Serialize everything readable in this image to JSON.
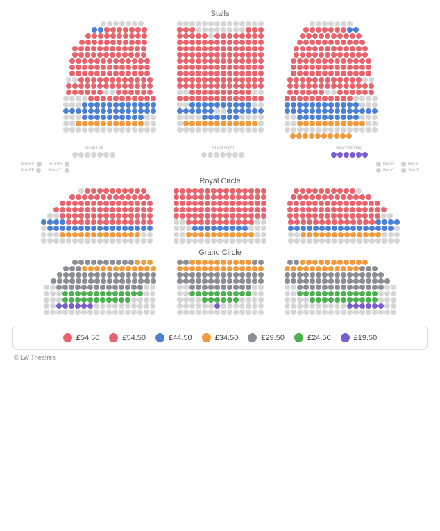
{
  "colors": {
    "red": "#e8636c",
    "blue": "#4a7fd4",
    "orange": "#f2993b",
    "grey": "#c8c8c8",
    "darkgrey": "#8a8d93",
    "green": "#4cb050",
    "purple": "#7a5dcf",
    "unavail": "#d6d6d6"
  },
  "sections": {
    "stalls": {
      "title": "Stalls"
    },
    "royal": {
      "title": "Royal Circle"
    },
    "grand": {
      "title": "Grand Circle"
    }
  },
  "standing": {
    "left": {
      "label": "Stand Left",
      "count": 7,
      "color": "unavail"
    },
    "right": {
      "label": "Stand Right",
      "count": 7,
      "color": "unavail"
    },
    "rear": {
      "label": "Rear Standing",
      "count": 6,
      "color": "purple"
    }
  },
  "boxes": {
    "left": [
      {
        "a": "Box EE",
        "b": "Box BB"
      },
      {
        "a": "Box FF",
        "b": "Box CC"
      }
    ],
    "right": [
      {
        "a": "Box B",
        "b": "Box E"
      },
      {
        "a": "Box C",
        "b": "Box F"
      }
    ]
  },
  "stalls_blocks": {
    "left": [
      {
        "n": 7,
        "c": "unavail",
        "off": 4
      },
      {
        "n": 9,
        "c": "red",
        "off": 3,
        "mix": [
          [
            "blue",
            0,
            2
          ]
        ]
      },
      {
        "n": 10,
        "c": "red",
        "off": 2
      },
      {
        "n": 11,
        "c": "red",
        "off": 1
      },
      {
        "n": 12,
        "c": "red"
      },
      {
        "n": 12,
        "c": "red"
      },
      {
        "n": 13,
        "c": "red"
      },
      {
        "n": 13,
        "c": "red"
      },
      {
        "n": 13,
        "c": "red"
      },
      {
        "n": 14,
        "c": "red",
        "mix": [
          [
            "unavail",
            0,
            2
          ]
        ]
      },
      {
        "n": 14,
        "c": "red"
      },
      {
        "n": 14,
        "c": "red",
        "mix": [
          [
            "unavail",
            6,
            8
          ]
        ]
      },
      {
        "n": 15,
        "c": "red",
        "mix": [
          [
            "unavail",
            0,
            4
          ]
        ]
      },
      {
        "n": 15,
        "c": "blue",
        "mix": [
          [
            "unavail",
            0,
            3
          ]
        ]
      },
      {
        "n": 15,
        "c": "blue"
      },
      {
        "n": 15,
        "c": "unavail",
        "off": 0,
        "mix": [
          [
            "blue",
            3,
            13
          ]
        ]
      },
      {
        "n": 15,
        "c": "orange",
        "mix": [
          [
            "unavail",
            0,
            2
          ],
          [
            "unavail",
            13,
            15
          ]
        ]
      },
      {
        "n": 15,
        "c": "unavail"
      }
    ],
    "center": [
      {
        "n": 14,
        "c": "unavail"
      },
      {
        "n": 14,
        "c": "unavail",
        "mix": [
          [
            "red",
            0,
            3
          ],
          [
            "red",
            11,
            14
          ]
        ]
      },
      {
        "n": 14,
        "c": "red",
        "mix": [
          [
            "unavail",
            5,
            6
          ]
        ]
      },
      {
        "n": 14,
        "c": "red"
      },
      {
        "n": 14,
        "c": "red"
      },
      {
        "n": 14,
        "c": "red"
      },
      {
        "n": 14,
        "c": "red"
      },
      {
        "n": 14,
        "c": "red"
      },
      {
        "n": 14,
        "c": "red"
      },
      {
        "n": 14,
        "c": "red"
      },
      {
        "n": 14,
        "c": "red"
      },
      {
        "n": 14,
        "c": "red",
        "mix": [
          [
            "unavail",
            0,
            2
          ],
          [
            "unavail",
            12,
            14
          ]
        ]
      },
      {
        "n": 14,
        "c": "red"
      },
      {
        "n": 14,
        "c": "blue",
        "mix": [
          [
            "unavail",
            0,
            2
          ],
          [
            "unavail",
            12,
            14
          ]
        ]
      },
      {
        "n": 14,
        "c": "blue",
        "mix": [
          [
            "unavail",
            6,
            8
          ]
        ]
      },
      {
        "n": 14,
        "c": "unavail",
        "mix": [
          [
            "blue",
            4,
            10
          ]
        ]
      },
      {
        "n": 14,
        "c": "orange",
        "mix": [
          [
            "unavail",
            0,
            1
          ],
          [
            "unavail",
            13,
            14
          ]
        ]
      },
      {
        "n": 14,
        "c": "unavail"
      }
    ],
    "right": [
      {
        "n": 7,
        "c": "unavail",
        "off": 0
      },
      {
        "n": 9,
        "c": "red",
        "off": 0,
        "mix": [
          [
            "blue",
            7,
            9
          ]
        ]
      },
      {
        "n": 10,
        "c": "red"
      },
      {
        "n": 11,
        "c": "red"
      },
      {
        "n": 12,
        "c": "red"
      },
      {
        "n": 12,
        "c": "red"
      },
      {
        "n": 13,
        "c": "red"
      },
      {
        "n": 13,
        "c": "red"
      },
      {
        "n": 13,
        "c": "red"
      },
      {
        "n": 14,
        "c": "red",
        "mix": [
          [
            "unavail",
            12,
            14
          ]
        ]
      },
      {
        "n": 14,
        "c": "red"
      },
      {
        "n": 14,
        "c": "red",
        "mix": [
          [
            "unavail",
            6,
            8
          ]
        ]
      },
      {
        "n": 15,
        "c": "red",
        "mix": [
          [
            "unavail",
            11,
            15
          ]
        ]
      },
      {
        "n": 15,
        "c": "blue",
        "mix": [
          [
            "unavail",
            12,
            15
          ]
        ]
      },
      {
        "n": 15,
        "c": "blue"
      },
      {
        "n": 15,
        "c": "unavail",
        "mix": [
          [
            "blue",
            2,
            12
          ]
        ]
      },
      {
        "n": 15,
        "c": "orange",
        "mix": [
          [
            "unavail",
            0,
            2
          ],
          [
            "unavail",
            13,
            15
          ]
        ]
      },
      {
        "n": 15,
        "c": "unavail"
      },
      {
        "n": 10,
        "c": "orange",
        "off": 3
      }
    ]
  },
  "royal_blocks": {
    "left": [
      {
        "n": 11,
        "c": "red",
        "off": 5,
        "mix": [
          [
            "unavail",
            0,
            1
          ]
        ]
      },
      {
        "n": 13,
        "c": "red",
        "off": 4
      },
      {
        "n": 15,
        "c": "red",
        "off": 3
      },
      {
        "n": 16,
        "c": "red",
        "off": 2
      },
      {
        "n": 17,
        "c": "red",
        "off": 1,
        "mix": [
          [
            "unavail",
            0,
            2
          ]
        ]
      },
      {
        "n": 18,
        "c": "red",
        "mix": [
          [
            "blue",
            0,
            4
          ]
        ]
      },
      {
        "n": 18,
        "c": "blue",
        "mix": [
          [
            "unavail",
            0,
            1
          ]
        ]
      },
      {
        "n": 18,
        "c": "orange",
        "mix": [
          [
            "unavail",
            0,
            3
          ],
          [
            "unavail",
            16,
            18
          ]
        ]
      },
      {
        "n": 18,
        "c": "unavail"
      }
    ],
    "center": [
      {
        "n": 15,
        "c": "red"
      },
      {
        "n": 15,
        "c": "red"
      },
      {
        "n": 15,
        "c": "red"
      },
      {
        "n": 15,
        "c": "red"
      },
      {
        "n": 15,
        "c": "red"
      },
      {
        "n": 15,
        "c": "red",
        "mix": [
          [
            "unavail",
            0,
            2
          ],
          [
            "unavail",
            13,
            15
          ]
        ]
      },
      {
        "n": 15,
        "c": "unavail",
        "mix": [
          [
            "blue",
            3,
            12
          ]
        ]
      },
      {
        "n": 15,
        "c": "orange",
        "mix": [
          [
            "unavail",
            0,
            2
          ],
          [
            "unavail",
            13,
            15
          ]
        ]
      },
      {
        "n": 15,
        "c": "unavail"
      }
    ],
    "right": [
      {
        "n": 11,
        "c": "red",
        "off": 0,
        "pad": 5,
        "mix": [
          [
            "unavail",
            10,
            11
          ]
        ]
      },
      {
        "n": 13,
        "c": "red",
        "off": 0,
        "pad": 4
      },
      {
        "n": 15,
        "c": "red",
        "off": 0,
        "pad": 3
      },
      {
        "n": 16,
        "c": "red",
        "off": 0,
        "pad": 2
      },
      {
        "n": 17,
        "c": "red",
        "off": 0,
        "pad": 1,
        "mix": [
          [
            "unavail",
            15,
            17
          ]
        ]
      },
      {
        "n": 18,
        "c": "red",
        "mix": [
          [
            "blue",
            14,
            18
          ]
        ]
      },
      {
        "n": 18,
        "c": "blue",
        "mix": [
          [
            "unavail",
            17,
            18
          ]
        ]
      },
      {
        "n": 18,
        "c": "orange",
        "mix": [
          [
            "unavail",
            0,
            2
          ],
          [
            "unavail",
            15,
            18
          ]
        ]
      },
      {
        "n": 18,
        "c": "unavail"
      }
    ]
  },
  "grand_blocks": {
    "left": [
      {
        "n": 13,
        "c": "darkgrey",
        "off": 4,
        "mix": [
          [
            "orange",
            10,
            13
          ]
        ]
      },
      {
        "n": 15,
        "c": "orange",
        "off": 3,
        "mix": [
          [
            "darkgrey",
            0,
            3
          ]
        ]
      },
      {
        "n": 16,
        "c": "darkgrey",
        "off": 2
      },
      {
        "n": 17,
        "c": "darkgrey",
        "off": 1
      },
      {
        "n": 18,
        "c": "unavail",
        "mix": [
          [
            "darkgrey",
            2,
            16
          ]
        ]
      },
      {
        "n": 18,
        "c": "green",
        "mix": [
          [
            "unavail",
            0,
            3
          ],
          [
            "unavail",
            16,
            18
          ]
        ]
      },
      {
        "n": 18,
        "c": "unavail",
        "mix": [
          [
            "green",
            3,
            14
          ]
        ]
      },
      {
        "n": 18,
        "c": "unavail",
        "mix": [
          [
            "purple",
            2,
            8
          ]
        ]
      },
      {
        "n": 18,
        "c": "unavail"
      }
    ],
    "center": [
      {
        "n": 14,
        "c": "orange",
        "mix": [
          [
            "darkgrey",
            0,
            2
          ],
          [
            "darkgrey",
            12,
            14
          ]
        ]
      },
      {
        "n": 14,
        "c": "orange"
      },
      {
        "n": 14,
        "c": "darkgrey"
      },
      {
        "n": 14,
        "c": "darkgrey"
      },
      {
        "n": 14,
        "c": "darkgrey",
        "mix": [
          [
            "unavail",
            0,
            2
          ],
          [
            "unavail",
            12,
            14
          ]
        ]
      },
      {
        "n": 14,
        "c": "green",
        "mix": [
          [
            "unavail",
            0,
            2
          ],
          [
            "unavail",
            12,
            14
          ]
        ]
      },
      {
        "n": 14,
        "c": "unavail",
        "mix": [
          [
            "green",
            4,
            10
          ]
        ]
      },
      {
        "n": 14,
        "c": "unavail",
        "mix": [
          [
            "purple",
            6,
            7
          ]
        ]
      },
      {
        "n": 14,
        "c": "unavail"
      }
    ],
    "right": [
      {
        "n": 13,
        "c": "orange",
        "off": 0,
        "pad": 4,
        "mix": [
          [
            "darkgrey",
            0,
            2
          ]
        ]
      },
      {
        "n": 15,
        "c": "orange",
        "off": 0,
        "pad": 3,
        "mix": [
          [
            "darkgrey",
            12,
            15
          ]
        ]
      },
      {
        "n": 16,
        "c": "darkgrey",
        "off": 0,
        "pad": 2
      },
      {
        "n": 17,
        "c": "darkgrey",
        "off": 0,
        "pad": 1
      },
      {
        "n": 18,
        "c": "unavail",
        "mix": [
          [
            "darkgrey",
            2,
            16
          ]
        ]
      },
      {
        "n": 18,
        "c": "green",
        "mix": [
          [
            "unavail",
            0,
            2
          ],
          [
            "unavail",
            15,
            18
          ]
        ]
      },
      {
        "n": 18,
        "c": "unavail",
        "mix": [
          [
            "green",
            4,
            15
          ]
        ]
      },
      {
        "n": 18,
        "c": "unavail",
        "mix": [
          [
            "purple",
            10,
            16
          ]
        ]
      },
      {
        "n": 18,
        "c": "unavail"
      }
    ]
  },
  "legend": [
    {
      "color": "red",
      "price": "£54.50"
    },
    {
      "color": "red",
      "price": "£54.50"
    },
    {
      "color": "blue",
      "price": "£44.50"
    },
    {
      "color": "orange",
      "price": "£34.50"
    },
    {
      "color": "darkgrey",
      "price": "£29.50"
    },
    {
      "color": "green",
      "price": "£24.50"
    },
    {
      "color": "purple",
      "price": "£19.50"
    }
  ],
  "copyright": "© LW Theatres"
}
